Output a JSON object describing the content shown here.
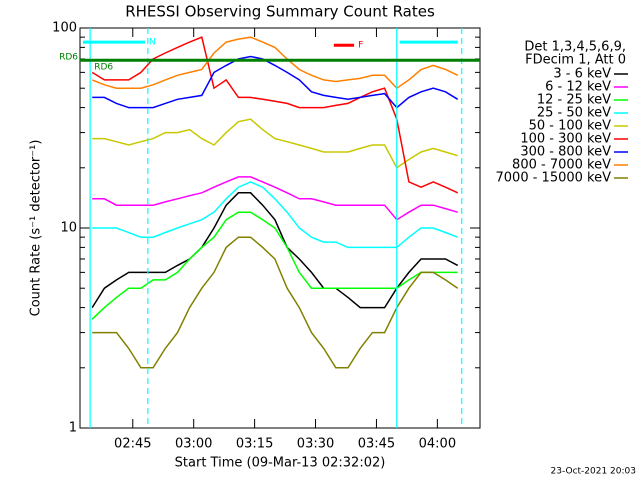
{
  "chart_data": {
    "type": "line",
    "title": "RHESSI Observing Summary Count Rates",
    "xlabel": "Start Time (09-Mar-13 02:32:02)",
    "ylabel": "Count Rate (s⁻¹ detector⁻¹)",
    "timestamp": "23-Oct-2021 20:03",
    "legend_header": [
      "Det 1,3,4,5,6,9,",
      "FDecim 1, Att 0"
    ],
    "yscale": "log",
    "xlim": [
      152,
      250.5
    ],
    "ylim": [
      1,
      100
    ],
    "yticks": [
      1,
      10,
      100
    ],
    "yminorticks": [
      2,
      3,
      4,
      5,
      6,
      7,
      8,
      9,
      20,
      30,
      40,
      50,
      60,
      70,
      80,
      90
    ],
    "xticks": [
      {
        "value": 165,
        "label": "02:45"
      },
      {
        "value": 180,
        "label": "03:00"
      },
      {
        "value": 195,
        "label": "03:15"
      },
      {
        "value": 210,
        "label": "03:30"
      },
      {
        "value": 225,
        "label": "03:45"
      },
      {
        "value": 240,
        "label": "04:00"
      }
    ],
    "vlines": [
      {
        "x": 154.5,
        "color": "#00ffff",
        "style": "solid"
      },
      {
        "x": 168.7,
        "color": "#00ffff",
        "style": "dashed"
      },
      {
        "x": 230,
        "color": "#00ffff",
        "style": "solid"
      },
      {
        "x": 246,
        "color": "#00ffff",
        "style": "dashed"
      }
    ],
    "hline": {
      "value": 69,
      "color": "#008000",
      "label": "RD6"
    },
    "flags": [
      {
        "label": "N",
        "color": "#00ffff",
        "start": 152.7,
        "end": 168,
        "level": 85
      },
      {
        "color": "#00ffff",
        "start": 230.7,
        "end": 245,
        "level": 85
      },
      {
        "label": "F",
        "color": "#ff0000",
        "start": 214.5,
        "end": 219.5,
        "level": 82
      }
    ],
    "annotations": [
      {
        "text": "RD6",
        "x": 155.5,
        "y": 64,
        "color": "#008000"
      }
    ],
    "x": [
      155,
      158,
      161,
      164,
      167,
      170,
      173,
      176,
      179,
      182,
      185,
      188,
      191,
      194,
      197,
      200,
      203,
      206,
      209,
      212,
      215,
      218,
      221,
      224,
      227,
      230,
      233,
      236,
      239,
      242,
      245
    ],
    "series": [
      {
        "name": "3 - 6 keV",
        "color": "#000000",
        "values": [
          4,
          5,
          5.5,
          6,
          6,
          6,
          6,
          6.5,
          7,
          8,
          10,
          13,
          15,
          15,
          13,
          11,
          8,
          7,
          6,
          5,
          5,
          4.5,
          4,
          4,
          4,
          5,
          6,
          7,
          7,
          7,
          6.5
        ]
      },
      {
        "name": "6 - 12 keV",
        "color": "#ff00ff",
        "values": [
          14,
          14,
          13,
          13,
          13,
          13,
          13.5,
          14,
          14.5,
          15,
          16,
          17,
          18,
          18,
          17,
          16,
          15,
          14,
          14,
          13.5,
          13,
          13,
          13,
          13,
          13,
          11,
          12,
          13,
          13,
          12.5,
          12
        ]
      },
      {
        "name": "12 - 25 keV",
        "color": "#00ff00",
        "values": [
          3.5,
          4,
          4.5,
          5,
          5,
          5.5,
          5.5,
          6,
          7,
          8,
          9,
          11,
          12,
          12,
          11,
          10,
          8,
          6,
          5,
          5,
          5,
          5,
          5,
          5,
          5,
          5,
          5.5,
          6,
          6,
          6,
          6
        ]
      },
      {
        "name": "25 - 50 keV",
        "color": "#00ffff",
        "values": [
          10,
          10,
          10,
          9.5,
          9,
          9,
          9.5,
          10,
          10.5,
          11,
          12,
          14,
          16,
          17,
          16,
          14,
          12,
          10,
          9,
          8.5,
          8.5,
          8,
          8,
          8,
          8,
          8,
          9,
          10,
          10,
          9.5,
          9
        ]
      },
      {
        "name": "50 - 100 keV",
        "color": "#c8c800",
        "values": [
          28,
          28,
          27,
          26,
          27,
          28,
          30,
          30,
          31,
          28,
          26,
          30,
          34,
          35,
          31,
          28,
          27,
          26,
          25,
          24,
          24,
          24,
          25,
          26,
          26,
          20,
          22,
          24,
          25,
          24,
          23
        ]
      },
      {
        "name": "100 - 300 keV",
        "color": "#ff0000",
        "values": [
          60,
          55,
          55,
          55,
          60,
          70,
          75,
          80,
          85,
          90,
          50,
          55,
          45,
          45,
          44,
          43,
          42,
          40,
          40,
          40,
          41,
          42,
          45,
          48,
          50,
          35,
          17,
          16,
          17,
          16,
          15
        ]
      },
      {
        "name": "300 - 800 keV",
        "color": "#0000ff",
        "values": [
          45,
          45,
          42,
          40,
          40,
          40,
          42,
          44,
          45,
          46,
          60,
          65,
          70,
          72,
          70,
          65,
          60,
          55,
          48,
          46,
          45,
          44,
          45,
          46,
          47,
          40,
          45,
          48,
          50,
          48,
          44
        ]
      },
      {
        "name": "800 - 7000 keV",
        "color": "#ff8000",
        "values": [
          55,
          52,
          50,
          50,
          50,
          52,
          55,
          58,
          60,
          62,
          75,
          85,
          88,
          90,
          85,
          80,
          70,
          62,
          58,
          55,
          54,
          55,
          56,
          58,
          58,
          50,
          55,
          62,
          65,
          62,
          58
        ]
      },
      {
        "name": "7000 - 15000 keV",
        "color": "#808000",
        "values": [
          3,
          3,
          3,
          2.5,
          2,
          2,
          2.5,
          3,
          4,
          5,
          6,
          8,
          9,
          9,
          8,
          7,
          5,
          4,
          3,
          2.5,
          2,
          2,
          2.5,
          3,
          3,
          4,
          5,
          6,
          6,
          5.5,
          5
        ]
      }
    ]
  }
}
